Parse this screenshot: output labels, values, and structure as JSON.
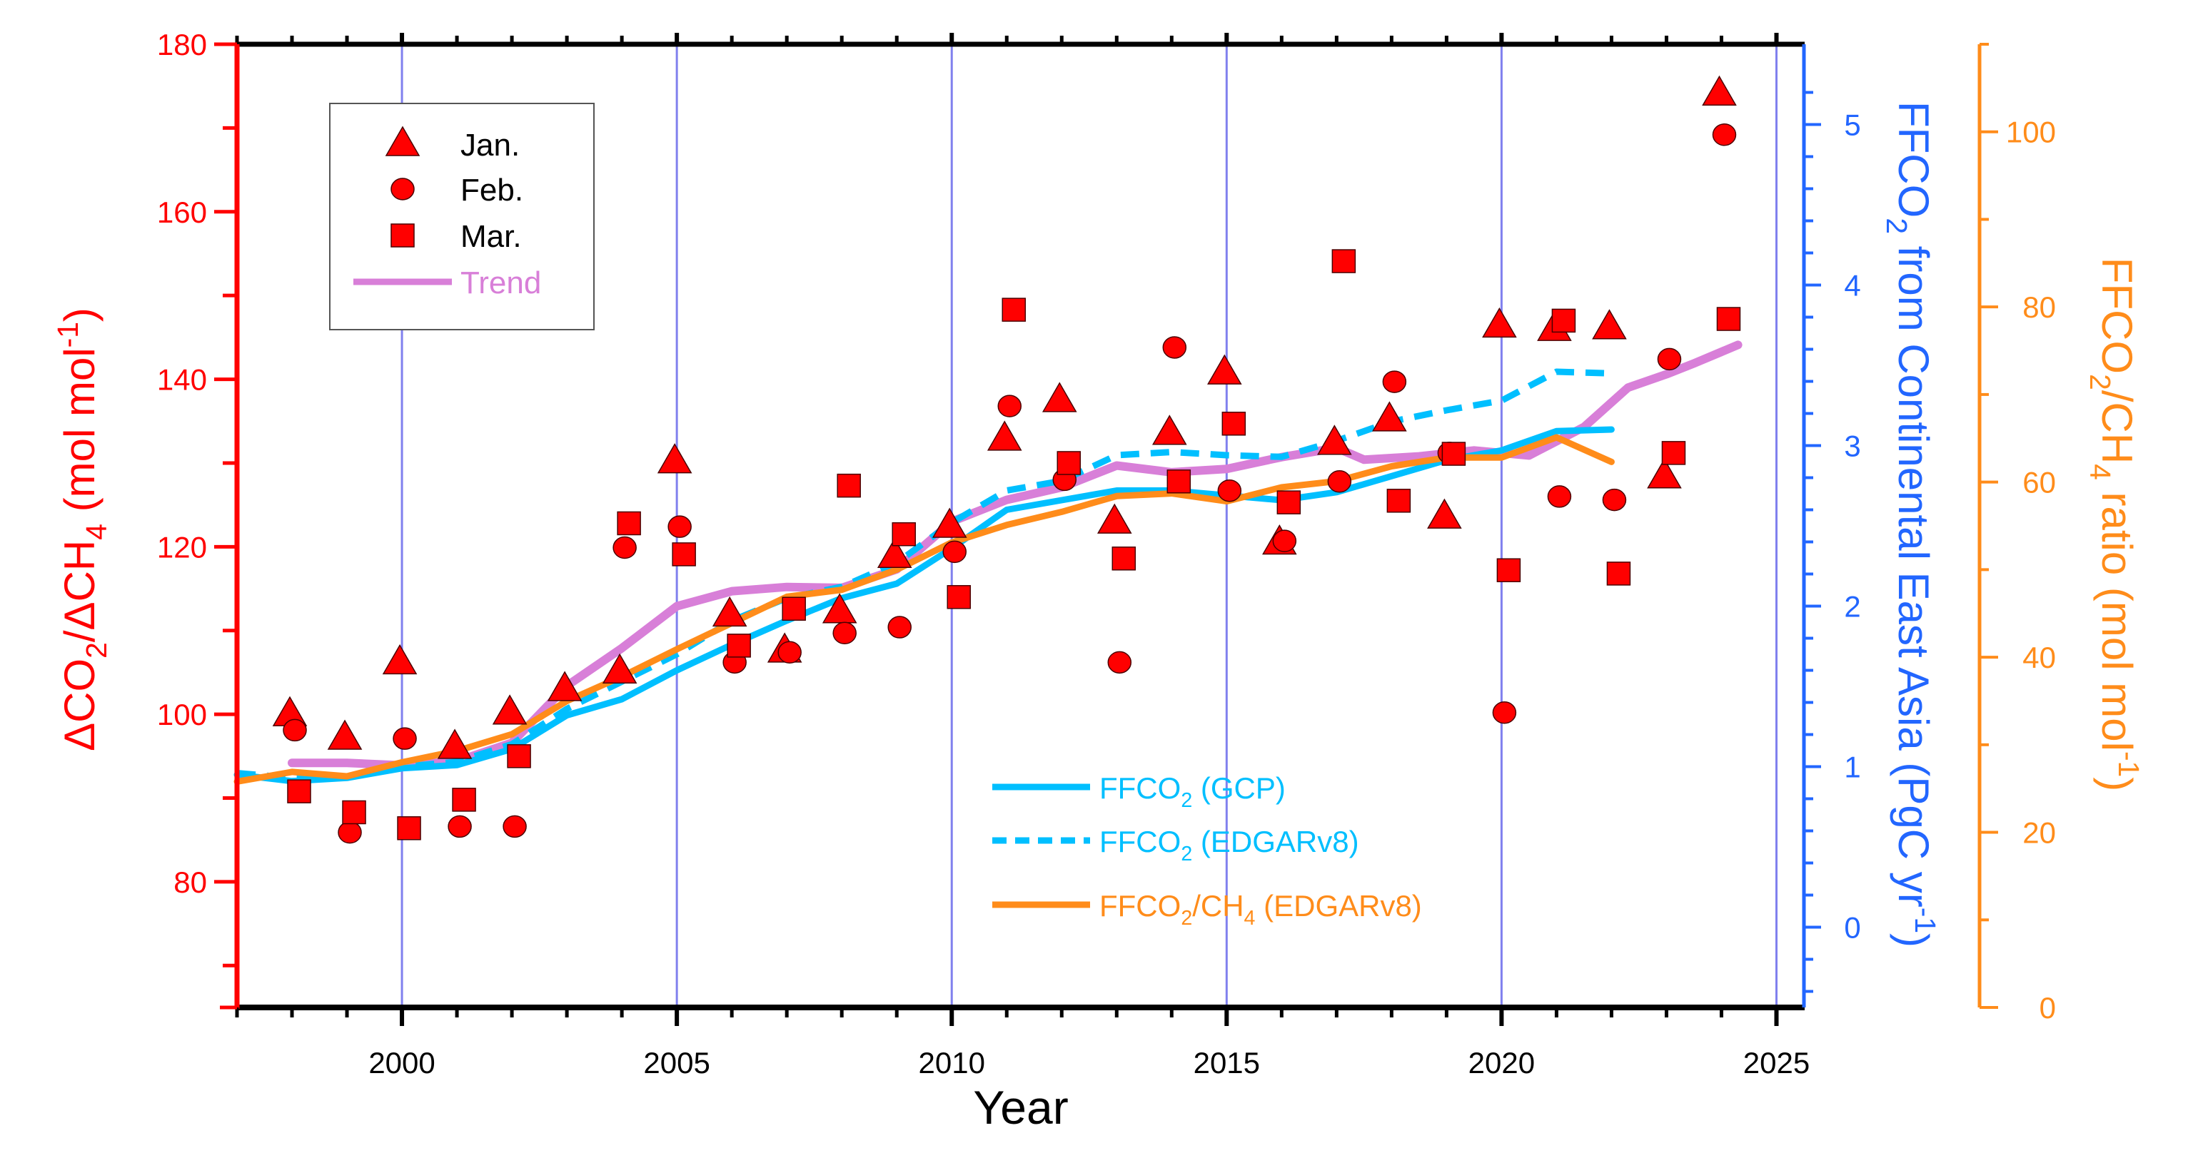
{
  "chart_data": {
    "type": "scatter",
    "title": "",
    "xlabel": "Year",
    "x_range": [
      1997,
      2025.5
    ],
    "x_ticks": [
      2000,
      2005,
      2010,
      2015,
      2020,
      2025
    ],
    "x_tick_labels": [
      "2000",
      "2005",
      "2010",
      "2015",
      "2020",
      "2025"
    ],
    "x_gridlines": [
      2000,
      2005,
      2010,
      2015,
      2020,
      2025
    ],
    "grid": "vertical-major",
    "y_axes": {
      "left": {
        "label_parts": [
          "ΔCO",
          "2",
          "/ΔCH",
          "4",
          " (mol mol",
          "-1",
          ")"
        ],
        "range": [
          65,
          180
        ],
        "ticks": [
          80,
          100,
          120,
          140,
          160,
          180
        ],
        "tick_labels": [
          "80",
          "100",
          "120",
          "140",
          "160",
          "180"
        ],
        "color": "#ff0000"
      },
      "right_blue": {
        "label_parts": [
          "FFCO",
          "2",
          " from Continental East Asia (PgC yr",
          "-1",
          ")"
        ],
        "range": [
          -0.5,
          5.5
        ],
        "ticks": [
          0,
          1,
          2,
          3,
          4,
          5
        ],
        "tick_labels": [
          "0",
          "1",
          "2",
          "3",
          "4",
          "5"
        ],
        "color": "#2266ff"
      },
      "right_orange": {
        "label_parts": [
          "FFCO",
          "2",
          "/CH",
          "4",
          " ratio (mol mol",
          "-1",
          ")"
        ],
        "range": [
          0,
          110
        ],
        "ticks": [
          0,
          20,
          40,
          60,
          80,
          100
        ],
        "tick_labels": [
          "0",
          "20",
          "40",
          "60",
          "80",
          "100"
        ],
        "color": "#ff8c1a"
      }
    },
    "scatter_series": [
      {
        "name": "Jan.",
        "marker": "triangle",
        "axis": "left",
        "color": "#ff0000",
        "x": [
          1998,
          1999,
          2000,
          2001,
          2002,
          2003,
          2004,
          2005,
          2006,
          2007,
          2008,
          2009,
          2010,
          2011,
          2012,
          2013,
          2014,
          2015,
          2016,
          2017,
          2018,
          2019,
          2020,
          2021,
          2022,
          2023,
          2024
        ],
        "y": [
          100.0,
          97.2,
          106.2,
          96.1,
          100.2,
          103.0,
          105.1,
          130.2,
          111.9,
          107.6,
          112.3,
          118.9,
          122.5,
          132.9,
          137.5,
          123.0,
          133.6,
          140.8,
          120.5,
          132.4,
          135.2,
          123.6,
          146.4,
          146.0,
          146.2,
          128.4,
          174.1
        ]
      },
      {
        "name": "Feb.",
        "marker": "circle",
        "axis": "left",
        "color": "#ff0000",
        "x": [
          1998,
          1999,
          2000,
          2001,
          2002,
          2004,
          2005,
          2006,
          2007,
          2008,
          2009,
          2010,
          2011,
          2012,
          2013,
          2014,
          2015,
          2016,
          2017,
          2018,
          2019,
          2020,
          2021,
          2022,
          2023,
          2024
        ],
        "y": [
          98.1,
          85.9,
          97.1,
          86.6,
          86.6,
          119.9,
          122.4,
          106.2,
          107.4,
          109.7,
          110.4,
          119.4,
          136.8,
          128.0,
          106.2,
          143.8,
          126.7,
          120.7,
          127.8,
          139.7,
          131.2,
          100.2,
          126.0,
          125.6,
          142.4,
          169.2
        ]
      },
      {
        "name": "Mar.",
        "marker": "square",
        "axis": "left",
        "color": "#ff0000",
        "x": [
          1998,
          1999,
          2000,
          2001,
          2002,
          2004,
          2005,
          2006,
          2007,
          2008,
          2009,
          2010,
          2011,
          2012,
          2013,
          2014,
          2015,
          2016,
          2017,
          2018,
          2019,
          2020,
          2021,
          2022,
          2023,
          2024
        ],
        "y": [
          90.8,
          88.3,
          86.4,
          89.8,
          95.0,
          122.8,
          119.1,
          108.2,
          112.6,
          127.3,
          121.5,
          114.0,
          148.3,
          130.0,
          118.6,
          127.8,
          134.7,
          125.3,
          154.1,
          125.5,
          131.1,
          117.2,
          147.0,
          116.8,
          131.2,
          147.2
        ]
      }
    ],
    "line_series": [
      {
        "name": "Trend",
        "axis": "left",
        "color": "#d87fd8",
        "style": "solid",
        "x": [
          1998.0,
          1999.0,
          2000.0,
          2001.0,
          2002.0,
          2003.0,
          2004.0,
          2005.0,
          2006.0,
          2007.0,
          2008.0,
          2009.0,
          2010.0,
          2011.0,
          2012.0,
          2013.0,
          2014.0,
          2015.0,
          2016.0,
          2017.0,
          2017.5,
          2018.5,
          2019.5,
          2020.5,
          2021.5,
          2022.3,
          2023.0,
          2023.5,
          2024.3
        ],
        "y": [
          94.2,
          94.2,
          93.9,
          94.4,
          96.6,
          103.4,
          107.9,
          112.9,
          114.7,
          115.2,
          115.1,
          117.3,
          123.0,
          125.6,
          127.1,
          129.7,
          128.9,
          129.3,
          130.7,
          131.8,
          130.4,
          130.8,
          131.5,
          130.9,
          134.3,
          139.0,
          140.6,
          141.9,
          144.1
        ]
      },
      {
        "name": "FFCO2 (GCP)",
        "axis": "right_blue",
        "color": "#00bfff",
        "style": "solid",
        "x": [
          1997,
          1998,
          1999,
          2000,
          2001,
          2002,
          2003,
          2004,
          2005,
          2006,
          2007,
          2008,
          2009,
          2010,
          2011,
          2012,
          2013,
          2014,
          2015,
          2016,
          2017,
          2018,
          2019,
          2020,
          2021,
          2022
        ],
        "y": [
          0.95,
          0.91,
          0.93,
          0.99,
          1.01,
          1.11,
          1.32,
          1.42,
          1.6,
          1.76,
          1.91,
          2.05,
          2.14,
          2.36,
          2.6,
          2.66,
          2.72,
          2.72,
          2.69,
          2.66,
          2.71,
          2.81,
          2.91,
          2.97,
          3.09,
          3.1
        ]
      },
      {
        "name": "FFCO2 (EDGARv8)",
        "axis": "right_blue",
        "color": "#00bfff",
        "style": "dashed",
        "x": [
          1997,
          1998,
          1999,
          2000,
          2001,
          2002,
          2003,
          2004,
          2005,
          2006,
          2007,
          2008,
          2009,
          2010,
          2011,
          2012,
          2013,
          2014,
          2015,
          2016,
          2017,
          2018,
          2019,
          2020,
          2021,
          2022
        ],
        "y": [
          0.96,
          0.93,
          0.94,
          1.0,
          1.03,
          1.14,
          1.36,
          1.53,
          1.7,
          1.91,
          2.05,
          2.12,
          2.27,
          2.52,
          2.72,
          2.78,
          2.94,
          2.96,
          2.94,
          2.93,
          3.03,
          3.15,
          3.22,
          3.28,
          3.46,
          3.45
        ]
      },
      {
        "name": "FFCO2/CH4 (EDGARv8)",
        "axis": "right_orange",
        "color": "#ff8c1a",
        "style": "solid",
        "x": [
          1997,
          1998,
          1999,
          2000,
          2001,
          2002,
          2003,
          2004,
          2005,
          2006,
          2007,
          2008,
          2009,
          2010,
          2011,
          2012,
          2013,
          2014,
          2015,
          2016,
          2017,
          2018,
          2019,
          2020,
          2021,
          2022
        ],
        "y": [
          25.8,
          26.9,
          26.4,
          28.0,
          29.3,
          31.2,
          35.0,
          37.8,
          40.9,
          43.9,
          46.9,
          47.7,
          50.0,
          53.1,
          55.1,
          56.6,
          58.4,
          58.7,
          57.8,
          59.4,
          60.1,
          61.8,
          62.8,
          62.8,
          65.1,
          62.3
        ]
      }
    ],
    "legend_markers": {
      "placement": "top-left",
      "items": [
        {
          "label": "Jan.",
          "marker": "triangle",
          "color": "#ff0000",
          "text_color": "#000000"
        },
        {
          "label": "Feb.",
          "marker": "circle",
          "color": "#ff0000",
          "text_color": "#000000"
        },
        {
          "label": "Mar.",
          "marker": "square",
          "color": "#ff0000",
          "text_color": "#000000"
        },
        {
          "label": "Trend",
          "marker": "line",
          "color": "#d87fd8",
          "text_color": "#d87fd8"
        }
      ]
    },
    "legend_lines": {
      "placement": "bottom-center",
      "items": [
        {
          "label_parts": [
            "FFCO",
            "2",
            " (GCP)"
          ],
          "style": "solid",
          "color": "#00bfff"
        },
        {
          "label_parts": [
            "FFCO",
            "2",
            " (EDGARv8)"
          ],
          "style": "dashed",
          "color": "#00bfff"
        },
        {
          "label_parts": [
            "FFCO",
            "2",
            "/CH",
            "4",
            " (EDGARv8)"
          ],
          "style": "solid",
          "color": "#ff8c1a"
        }
      ]
    },
    "gridline_color": "#8080ee"
  }
}
